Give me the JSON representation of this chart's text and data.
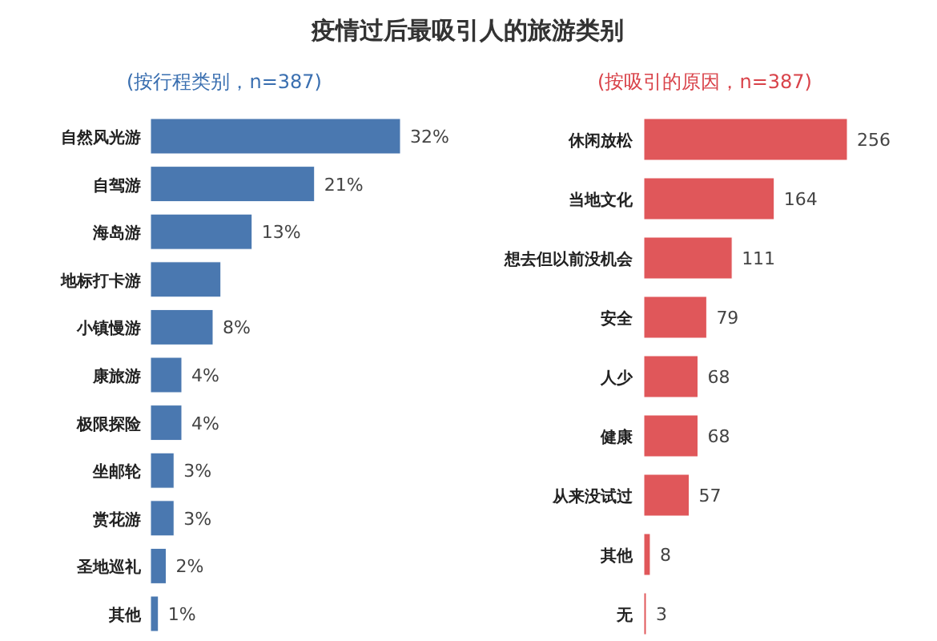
{
  "chart_data": [
    {
      "type": "bar",
      "orientation": "horizontal",
      "title": "疫情过后最吸引人的旅游类别",
      "subtitle": "(按行程类别，n=387)",
      "categories": [
        "自然风光游",
        "自驾游",
        "海岛游",
        "地标打卡游",
        "小镇慢游",
        "康旅游",
        "极限探险",
        "坐邮轮",
        "赏花游",
        "圣地巡礼",
        "其他"
      ],
      "values": [
        32,
        21,
        13,
        9,
        8,
        4,
        4,
        3,
        3,
        2,
        1
      ],
      "value_labels": [
        "32%",
        "21%",
        "13%",
        null,
        "8%",
        "4%",
        "4%",
        "3%",
        "3%",
        "2%",
        "1%"
      ],
      "color": "#4a78b0"
    },
    {
      "type": "bar",
      "orientation": "horizontal",
      "subtitle": "(按吸引的原因，n=387)",
      "categories": [
        "休闲放松",
        "当地文化",
        "想去但以前没机会",
        "安全",
        "人少",
        "健康",
        "从来没试过",
        "其他",
        "无"
      ],
      "values": [
        256,
        164,
        111,
        79,
        68,
        68,
        57,
        8,
        3
      ],
      "data_labels": true,
      "color": "#e0575a"
    }
  ]
}
